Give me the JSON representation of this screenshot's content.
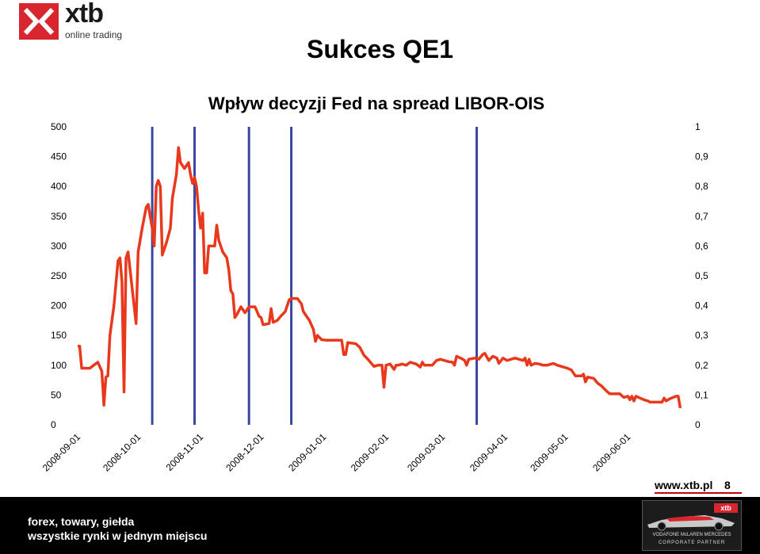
{
  "brand": {
    "name": "xtb",
    "tagline": "online trading",
    "color": "#d7262e"
  },
  "slide": {
    "title": "Sukces QE1",
    "url": "www.xtb.pl",
    "page": "8"
  },
  "footer": {
    "line1": "forex, towary, giełda",
    "line2": "wszystkie rynki w jednym  miejscu",
    "banner_line1": "VODAFONE McLAREN MERCEDES",
    "banner_line2": "CORPORATE PARTNER"
  },
  "chart_data": {
    "type": "line",
    "title": "Wpływ decyzji Fed na spread LIBOR-OIS",
    "xlabel": "",
    "ylabel": "",
    "ylim": [
      0,
      500
    ],
    "y2lim": [
      0,
      1
    ],
    "y_ticks": [
      "0",
      "50",
      "100",
      "150",
      "200",
      "250",
      "300",
      "350",
      "400",
      "450",
      "500"
    ],
    "y2_ticks": [
      "0",
      "0,1",
      "0,2",
      "0,3",
      "0,4",
      "0,5",
      "0,6",
      "0,7",
      "0,8",
      "0,9",
      "1"
    ],
    "x_ticks": [
      "2008-09-01",
      "2008-10-01",
      "2008-11-01",
      "2008-12-01",
      "2009-01-01",
      "2009-02-01",
      "2009-03-01",
      "2009-04-01",
      "2009-05-01",
      "2009-06-01"
    ],
    "xlim": [
      "2008-09-01",
      "2009-06-30"
    ],
    "line_color": "#e8391d",
    "event_color": "#3c46a0",
    "grid": false,
    "events": [
      "2008-10-08",
      "2008-10-29",
      "2008-11-25",
      "2008-12-16",
      "2009-03-18"
    ],
    "series": [
      {
        "values": [
          [
            "2008-09-01",
            132
          ],
          [
            "2008-09-02",
            132
          ],
          [
            "2008-09-03",
            95
          ],
          [
            "2008-09-05",
            95
          ],
          [
            "2008-09-07",
            95
          ],
          [
            "2008-09-09",
            100
          ],
          [
            "2008-09-11",
            105
          ],
          [
            "2008-09-13",
            90
          ],
          [
            "2008-09-14",
            33
          ],
          [
            "2008-09-15",
            80
          ],
          [
            "2008-09-16",
            82
          ],
          [
            "2008-09-17",
            150
          ],
          [
            "2008-09-19",
            200
          ],
          [
            "2008-09-21",
            275
          ],
          [
            "2008-09-22",
            280
          ],
          [
            "2008-09-23",
            240
          ],
          [
            "2008-09-24",
            55
          ],
          [
            "2008-09-25",
            280
          ],
          [
            "2008-09-26",
            290
          ],
          [
            "2008-09-28",
            230
          ],
          [
            "2008-09-30",
            170
          ],
          [
            "2008-10-01",
            290
          ],
          [
            "2008-10-03",
            330
          ],
          [
            "2008-10-05",
            365
          ],
          [
            "2008-10-06",
            370
          ],
          [
            "2008-10-07",
            350
          ],
          [
            "2008-10-08",
            330
          ],
          [
            "2008-10-09",
            300
          ],
          [
            "2008-10-10",
            400
          ],
          [
            "2008-10-11",
            410
          ],
          [
            "2008-10-12",
            400
          ],
          [
            "2008-10-13",
            285
          ],
          [
            "2008-10-15",
            305
          ],
          [
            "2008-10-17",
            330
          ],
          [
            "2008-10-18",
            380
          ],
          [
            "2008-10-20",
            420
          ],
          [
            "2008-10-21",
            465
          ],
          [
            "2008-10-22",
            440
          ],
          [
            "2008-10-24",
            430
          ],
          [
            "2008-10-26",
            440
          ],
          [
            "2008-10-27",
            420
          ],
          [
            "2008-10-28",
            405
          ],
          [
            "2008-10-29",
            415
          ],
          [
            "2008-10-30",
            400
          ],
          [
            "2008-10-31",
            360
          ],
          [
            "2008-11-01",
            330
          ],
          [
            "2008-11-02",
            355
          ],
          [
            "2008-11-03",
            255
          ],
          [
            "2008-11-04",
            255
          ],
          [
            "2008-11-05",
            300
          ],
          [
            "2008-11-07",
            300
          ],
          [
            "2008-11-08",
            300
          ],
          [
            "2008-11-09",
            335
          ],
          [
            "2008-11-10",
            310
          ],
          [
            "2008-11-12",
            290
          ],
          [
            "2008-11-14",
            280
          ],
          [
            "2008-11-15",
            260
          ],
          [
            "2008-11-16",
            225
          ],
          [
            "2008-11-17",
            220
          ],
          [
            "2008-11-18",
            180
          ],
          [
            "2008-11-19",
            185
          ],
          [
            "2008-11-21",
            198
          ],
          [
            "2008-11-23",
            188
          ],
          [
            "2008-11-25",
            198
          ],
          [
            "2008-11-28",
            198
          ],
          [
            "2008-11-30",
            182
          ],
          [
            "2008-12-01",
            180
          ],
          [
            "2008-12-02",
            168
          ],
          [
            "2008-12-05",
            170
          ],
          [
            "2008-12-06",
            195
          ],
          [
            "2008-12-07",
            172
          ],
          [
            "2008-12-09",
            175
          ],
          [
            "2008-12-11",
            183
          ],
          [
            "2008-12-13",
            190
          ],
          [
            "2008-12-15",
            210
          ],
          [
            "2008-12-16",
            212
          ],
          [
            "2008-12-19",
            212
          ],
          [
            "2008-12-21",
            203
          ],
          [
            "2008-12-22",
            190
          ],
          [
            "2008-12-24",
            180
          ],
          [
            "2008-12-25",
            175
          ],
          [
            "2008-12-27",
            160
          ],
          [
            "2008-12-28",
            140
          ],
          [
            "2008-12-29",
            150
          ],
          [
            "2008-12-31",
            143
          ],
          [
            "2009-01-02",
            142
          ],
          [
            "2009-01-06",
            142
          ],
          [
            "2009-01-08",
            142
          ],
          [
            "2009-01-10",
            142
          ],
          [
            "2009-01-11",
            118
          ],
          [
            "2009-01-12",
            118
          ],
          [
            "2009-01-13",
            138
          ],
          [
            "2009-01-17",
            136
          ],
          [
            "2009-01-19",
            130
          ],
          [
            "2009-01-21",
            117
          ],
          [
            "2009-01-23",
            110
          ],
          [
            "2009-01-26",
            98
          ],
          [
            "2009-01-28",
            100
          ],
          [
            "2009-01-30",
            100
          ],
          [
            "2009-01-31",
            63
          ],
          [
            "2009-02-01",
            100
          ],
          [
            "2009-02-03",
            102
          ],
          [
            "2009-02-05",
            93
          ],
          [
            "2009-02-06",
            100
          ],
          [
            "2009-02-07",
            100
          ],
          [
            "2009-02-09",
            102
          ],
          [
            "2009-02-11",
            100
          ],
          [
            "2009-02-13",
            105
          ],
          [
            "2009-02-16",
            102
          ],
          [
            "2009-02-18",
            97
          ],
          [
            "2009-02-19",
            105
          ],
          [
            "2009-02-20",
            100
          ],
          [
            "2009-02-24",
            100
          ],
          [
            "2009-02-26",
            108
          ],
          [
            "2009-02-28",
            110
          ],
          [
            "2009-03-02",
            108
          ],
          [
            "2009-03-04",
            106
          ],
          [
            "2009-03-06",
            105
          ],
          [
            "2009-03-07",
            100
          ],
          [
            "2009-03-08",
            115
          ],
          [
            "2009-03-10",
            112
          ],
          [
            "2009-03-12",
            108
          ],
          [
            "2009-03-13",
            100
          ],
          [
            "2009-03-14",
            110
          ],
          [
            "2009-03-17",
            112
          ],
          [
            "2009-03-19",
            110
          ],
          [
            "2009-03-21",
            118
          ],
          [
            "2009-03-22",
            120
          ],
          [
            "2009-03-24",
            108
          ],
          [
            "2009-03-26",
            115
          ],
          [
            "2009-03-28",
            112
          ],
          [
            "2009-03-29",
            103
          ],
          [
            "2009-03-31",
            112
          ],
          [
            "2009-04-02",
            108
          ],
          [
            "2009-04-04",
            110
          ],
          [
            "2009-04-06",
            112
          ],
          [
            "2009-04-08",
            110
          ],
          [
            "2009-04-10",
            108
          ],
          [
            "2009-04-11",
            112
          ],
          [
            "2009-04-12",
            100
          ],
          [
            "2009-04-13",
            110
          ],
          [
            "2009-04-14",
            100
          ],
          [
            "2009-04-16",
            103
          ],
          [
            "2009-04-18",
            102
          ],
          [
            "2009-04-20",
            100
          ],
          [
            "2009-04-22",
            100
          ],
          [
            "2009-04-24",
            102
          ],
          [
            "2009-04-25",
            103
          ],
          [
            "2009-04-27",
            100
          ],
          [
            "2009-04-30",
            97
          ],
          [
            "2009-05-02",
            95
          ],
          [
            "2009-05-04",
            92
          ],
          [
            "2009-05-06",
            82
          ],
          [
            "2009-05-09",
            82
          ],
          [
            "2009-05-10",
            85
          ],
          [
            "2009-05-11",
            72
          ],
          [
            "2009-05-12",
            80
          ],
          [
            "2009-05-15",
            78
          ],
          [
            "2009-05-17",
            70
          ],
          [
            "2009-05-19",
            65
          ],
          [
            "2009-05-21",
            58
          ],
          [
            "2009-05-23",
            52
          ],
          [
            "2009-05-26",
            52
          ],
          [
            "2009-05-28",
            52
          ],
          [
            "2009-05-30",
            46
          ],
          [
            "2009-06-01",
            48
          ],
          [
            "2009-06-02",
            42
          ],
          [
            "2009-06-03",
            48
          ],
          [
            "2009-06-04",
            40
          ],
          [
            "2009-06-05",
            48
          ],
          [
            "2009-06-07",
            45
          ],
          [
            "2009-06-09",
            42
          ],
          [
            "2009-06-11",
            40
          ],
          [
            "2009-06-12",
            38
          ],
          [
            "2009-06-16",
            38
          ],
          [
            "2009-06-18",
            38
          ],
          [
            "2009-06-19",
            45
          ],
          [
            "2009-06-20",
            40
          ],
          [
            "2009-06-22",
            44
          ],
          [
            "2009-06-25",
            48
          ],
          [
            "2009-06-26",
            48
          ],
          [
            "2009-06-27",
            28
          ]
        ]
      }
    ]
  }
}
